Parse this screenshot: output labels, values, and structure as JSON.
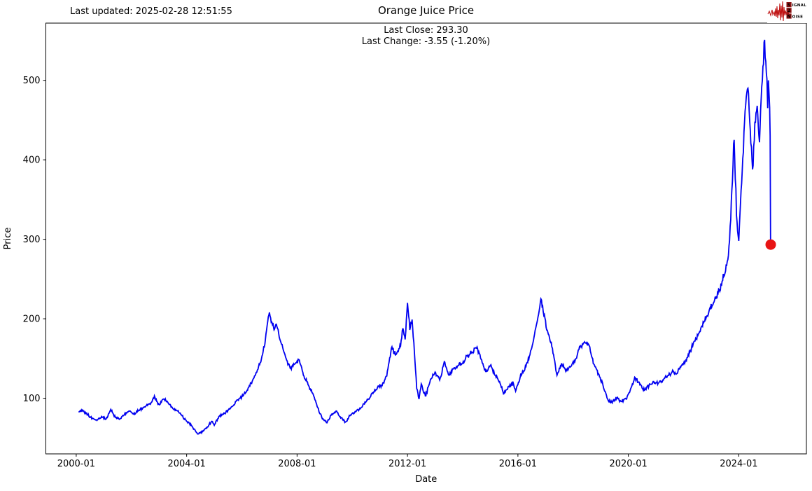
{
  "header": {
    "last_updated": "Last updated: 2025-02-28 12:51:55",
    "title": "Orange Juice Price",
    "subtitle_line1": "Last Close: 293.30",
    "subtitle_line2": "Last Change: -3.55 (-1.20%)"
  },
  "logo": {
    "word1_first": "S",
    "word1_rest": "IGNAL",
    "word2": "2",
    "word3_first": "N",
    "word3_rest": "OISE",
    "accent_color": "#c01414",
    "box_color": "#8c1212"
  },
  "chart_data": {
    "type": "line",
    "title": "Orange Juice Price",
    "xlabel": "Date",
    "ylabel": "Price",
    "x_ticks": [
      "2000-01",
      "2004-01",
      "2008-01",
      "2012-01",
      "2016-01",
      "2020-01",
      "2024-01"
    ],
    "y_ticks": [
      100,
      200,
      300,
      400,
      500
    ],
    "xlim": [
      1998.9,
      2026.45
    ],
    "ylim": [
      30,
      572
    ],
    "grid": false,
    "legend": "none",
    "line_color": "#0000f0",
    "last_close": 293.3,
    "last_change_abs": -3.55,
    "last_change_pct": "-1.20%",
    "marker": {
      "date": "2025-02-28",
      "value": 293.3,
      "color": "#e81414",
      "size": 7.5
    },
    "series": [
      {
        "name": "Price",
        "points": [
          [
            "2000-02",
            83
          ],
          [
            "2000-04",
            84
          ],
          [
            "2000-06",
            79
          ],
          [
            "2000-08",
            75
          ],
          [
            "2000-10",
            72
          ],
          [
            "2000-12",
            77
          ],
          [
            "2001-02",
            74
          ],
          [
            "2001-04",
            86
          ],
          [
            "2001-06",
            76
          ],
          [
            "2001-08",
            74
          ],
          [
            "2001-10",
            80
          ],
          [
            "2001-12",
            84
          ],
          [
            "2002-02",
            80
          ],
          [
            "2002-04",
            84
          ],
          [
            "2002-06",
            88
          ],
          [
            "2002-08",
            91
          ],
          [
            "2002-10",
            96
          ],
          [
            "2002-11",
            103
          ],
          [
            "2002-12",
            96
          ],
          [
            "2003-01",
            92
          ],
          [
            "2003-03",
            99
          ],
          [
            "2003-05",
            94
          ],
          [
            "2003-07",
            87
          ],
          [
            "2003-09",
            84
          ],
          [
            "2003-11",
            78
          ],
          [
            "2004-01",
            71
          ],
          [
            "2004-03",
            66
          ],
          [
            "2004-05",
            58
          ],
          [
            "2004-06",
            55
          ],
          [
            "2004-08",
            58
          ],
          [
            "2004-10",
            64
          ],
          [
            "2004-12",
            71
          ],
          [
            "2005-01",
            66
          ],
          [
            "2005-03",
            77
          ],
          [
            "2005-05",
            80
          ],
          [
            "2005-07",
            85
          ],
          [
            "2005-09",
            90
          ],
          [
            "2005-11",
            98
          ],
          [
            "2006-01",
            102
          ],
          [
            "2006-03",
            108
          ],
          [
            "2006-05",
            119
          ],
          [
            "2006-07",
            130
          ],
          [
            "2006-09",
            145
          ],
          [
            "2006-11",
            168
          ],
          [
            "2006-12",
            192
          ],
          [
            "2007-01",
            208
          ],
          [
            "2007-02",
            196
          ],
          [
            "2007-03",
            186
          ],
          [
            "2007-04",
            193
          ],
          [
            "2007-06",
            170
          ],
          [
            "2007-08",
            152
          ],
          [
            "2007-10",
            138
          ],
          [
            "2007-12",
            143
          ],
          [
            "2008-02",
            148
          ],
          [
            "2008-04",
            128
          ],
          [
            "2008-06",
            116
          ],
          [
            "2008-08",
            105
          ],
          [
            "2008-10",
            88
          ],
          [
            "2008-12",
            74
          ],
          [
            "2009-02",
            69
          ],
          [
            "2009-04",
            80
          ],
          [
            "2009-06",
            84
          ],
          [
            "2009-08",
            75
          ],
          [
            "2009-10",
            70
          ],
          [
            "2009-12",
            78
          ],
          [
            "2010-02",
            82
          ],
          [
            "2010-04",
            86
          ],
          [
            "2010-06",
            93
          ],
          [
            "2010-08",
            99
          ],
          [
            "2010-10",
            106
          ],
          [
            "2010-12",
            114
          ],
          [
            "2011-02",
            116
          ],
          [
            "2011-04",
            128
          ],
          [
            "2011-06",
            163
          ],
          [
            "2011-08",
            155
          ],
          [
            "2011-10",
            166
          ],
          [
            "2011-11",
            188
          ],
          [
            "2011-12",
            174
          ],
          [
            "2012-01",
            220
          ],
          [
            "2012-02",
            186
          ],
          [
            "2012-03",
            199
          ],
          [
            "2012-04",
            158
          ],
          [
            "2012-05",
            112
          ],
          [
            "2012-06",
            99
          ],
          [
            "2012-07",
            118
          ],
          [
            "2012-08",
            107
          ],
          [
            "2012-09",
            103
          ],
          [
            "2012-11",
            124
          ],
          [
            "2013-01",
            133
          ],
          [
            "2013-03",
            123
          ],
          [
            "2013-05",
            146
          ],
          [
            "2013-07",
            129
          ],
          [
            "2013-09",
            137
          ],
          [
            "2013-11",
            141
          ],
          [
            "2014-01",
            144
          ],
          [
            "2014-03",
            153
          ],
          [
            "2014-05",
            158
          ],
          [
            "2014-07",
            163
          ],
          [
            "2014-09",
            149
          ],
          [
            "2014-11",
            133
          ],
          [
            "2015-01",
            141
          ],
          [
            "2015-03",
            129
          ],
          [
            "2015-05",
            121
          ],
          [
            "2015-07",
            106
          ],
          [
            "2015-09",
            115
          ],
          [
            "2015-11",
            119
          ],
          [
            "2015-12",
            109
          ],
          [
            "2016-02",
            127
          ],
          [
            "2016-04",
            136
          ],
          [
            "2016-06",
            153
          ],
          [
            "2016-08",
            177
          ],
          [
            "2016-10",
            206
          ],
          [
            "2016-11",
            225
          ],
          [
            "2016-12",
            209
          ],
          [
            "2017-02",
            183
          ],
          [
            "2017-04",
            163
          ],
          [
            "2017-06",
            129
          ],
          [
            "2017-08",
            144
          ],
          [
            "2017-10",
            136
          ],
          [
            "2017-12",
            140
          ],
          [
            "2018-02",
            149
          ],
          [
            "2018-04",
            164
          ],
          [
            "2018-06",
            171
          ],
          [
            "2018-08",
            166
          ],
          [
            "2018-10",
            143
          ],
          [
            "2018-12",
            131
          ],
          [
            "2019-02",
            116
          ],
          [
            "2019-04",
            99
          ],
          [
            "2019-06",
            94
          ],
          [
            "2019-08",
            101
          ],
          [
            "2019-10",
            96
          ],
          [
            "2019-12",
            99
          ],
          [
            "2020-02",
            112
          ],
          [
            "2020-04",
            126
          ],
          [
            "2020-06",
            117
          ],
          [
            "2020-08",
            110
          ],
          [
            "2020-10",
            116
          ],
          [
            "2020-12",
            121
          ],
          [
            "2021-02",
            119
          ],
          [
            "2021-04",
            123
          ],
          [
            "2021-06",
            128
          ],
          [
            "2021-08",
            133
          ],
          [
            "2021-10",
            131
          ],
          [
            "2021-12",
            141
          ],
          [
            "2022-02",
            148
          ],
          [
            "2022-04",
            160
          ],
          [
            "2022-06",
            172
          ],
          [
            "2022-08",
            184
          ],
          [
            "2022-10",
            197
          ],
          [
            "2022-12",
            209
          ],
          [
            "2023-02",
            220
          ],
          [
            "2023-04",
            232
          ],
          [
            "2023-06",
            248
          ],
          [
            "2023-08",
            272
          ],
          [
            "2023-09",
            298
          ],
          [
            "2023-10",
            362
          ],
          [
            "2023-11",
            425
          ],
          [
            "2023-12",
            330
          ],
          [
            "2024-01",
            298
          ],
          [
            "2024-02",
            362
          ],
          [
            "2024-03",
            410
          ],
          [
            "2024-04",
            468
          ],
          [
            "2024-05",
            490
          ],
          [
            "2024-06",
            438
          ],
          [
            "2024-07",
            388
          ],
          [
            "2024-08",
            448
          ],
          [
            "2024-09",
            468
          ],
          [
            "2024-10",
            422
          ],
          [
            "2024-11",
            492
          ],
          [
            "2024-12",
            548
          ],
          [
            "2025-01-08",
            502
          ],
          [
            "2025-01-18",
            465
          ],
          [
            "2025-01-28",
            500
          ],
          [
            "2025-02-08",
            478
          ],
          [
            "2025-02-14",
            466
          ],
          [
            "2025-02-20",
            430
          ],
          [
            "2025-02-26",
            300
          ],
          [
            "2025-02-28",
            293.3
          ]
        ]
      }
    ]
  }
}
